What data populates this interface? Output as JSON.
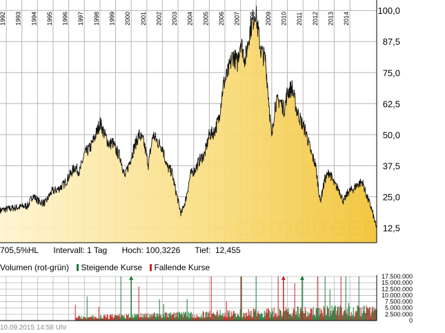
{
  "chart_data": [
    {
      "type": "area",
      "title": "",
      "x_tick_labels": [
        "1992",
        "1993",
        "1994",
        "1995",
        "1996",
        "1997",
        "1998",
        "1999",
        "2000",
        "2001",
        "2002",
        "2003",
        "2004",
        "2005",
        "2006",
        "2007",
        "2008",
        "2009",
        "2010",
        "2011",
        "2012",
        "2013",
        "2014"
      ],
      "y_tick_labels": [
        "12,5",
        "25,0",
        "37,5",
        "50,0",
        "62,5",
        "75,0",
        "87,5",
        "100,0"
      ],
      "ylim": [
        6.5,
        102
      ],
      "xlim": [
        1991.6,
        2015.72
      ],
      "grid": true,
      "watermark": ".comdirect",
      "series": [
        {
          "x": [
            1991.6,
            1992.0,
            1992.5,
            1993.0,
            1993.4,
            1993.7,
            1994.1,
            1994.5,
            1994.9,
            1995.3,
            1995.7,
            1996.0,
            1996.4,
            1996.7,
            1997.0,
            1997.4,
            1997.8,
            1998.0,
            1998.3,
            1998.6,
            1998.8,
            1999.0,
            1999.3,
            1999.6,
            1999.9,
            2000.2,
            2000.5,
            2000.8,
            2001.1,
            2001.4,
            2001.7,
            2002.0,
            2002.3,
            2002.6,
            2002.9,
            2003.2,
            2003.5,
            2003.8,
            2004.1,
            2004.4,
            2004.7,
            2005.0,
            2005.3,
            2005.6,
            2005.9,
            2006.2,
            2006.5,
            2006.8,
            2007.0,
            2007.3,
            2007.6,
            2007.8,
            2007.95,
            2008.1,
            2008.3,
            2008.6,
            2008.8,
            2009.0,
            2009.2,
            2009.5,
            2009.8,
            2010.0,
            2010.3,
            2010.6,
            2010.9,
            2011.2,
            2011.5,
            2011.8,
            2012.1,
            2012.4,
            2012.7,
            2013.0,
            2013.3,
            2013.6,
            2013.9,
            2014.2,
            2014.5,
            2014.8,
            2015.1,
            2015.4,
            2015.7
          ],
          "y": [
            19.5,
            20,
            20.5,
            21,
            21.5,
            25.5,
            23,
            22.5,
            27,
            28,
            30,
            33,
            37,
            35,
            42,
            45,
            51,
            55,
            50,
            46,
            47,
            44,
            41,
            33,
            39,
            45,
            50,
            47,
            38,
            50,
            47,
            45,
            37,
            35,
            26,
            18,
            24,
            34,
            36,
            40,
            42,
            50,
            51,
            56,
            70,
            75,
            82,
            79,
            88,
            80,
            92,
            96,
            100.3,
            93,
            84,
            80,
            65,
            48,
            62,
            64,
            60,
            67,
            69,
            60,
            55,
            51,
            43,
            38,
            23,
            32,
            35,
            30,
            28,
            23,
            27,
            28,
            30,
            31,
            25,
            20,
            12.5
          ]
        }
      ]
    },
    {
      "type": "bar",
      "title": "",
      "ylabel": "Volumen (rot-grün)",
      "legend": [
        {
          "name": "Steigende Kurse",
          "color": "#1a7a36"
        },
        {
          "name": "Fallende Kurse",
          "color": "#cc1f1f"
        }
      ],
      "y_tick_labels": [
        "0",
        "2.500.000",
        "5.000.000",
        "7.500.000",
        "10.000.000",
        "12.500.000",
        "15.000.000",
        "17.500.000"
      ],
      "ylim": [
        0,
        17500000
      ],
      "xlim": [
        1991.6,
        2015.72
      ],
      "volume_start": 1996.4,
      "typical_volume": 2500000,
      "offscale_marks": [
        {
          "x": 2000.0,
          "color": "#1a7a36"
        },
        {
          "x": 2009.75,
          "color": "#cc1f1f"
        },
        {
          "x": 2010.95,
          "color": "#1a7a36"
        }
      ]
    }
  ],
  "info": {
    "range": "705,5%HL",
    "interval": "Intervall: 1 Tag",
    "high": "Hoch: 100,3226",
    "low": "Tief:  12,455"
  },
  "footer": "10.09.2015 14:58 Uhr",
  "colors": {
    "grid": "#b4b4b4",
    "fill_dark": "#f1c232",
    "fill_light": "#fff4cf",
    "line": "#111111",
    "up": "#1a7a36",
    "down": "#cc1f1f"
  }
}
